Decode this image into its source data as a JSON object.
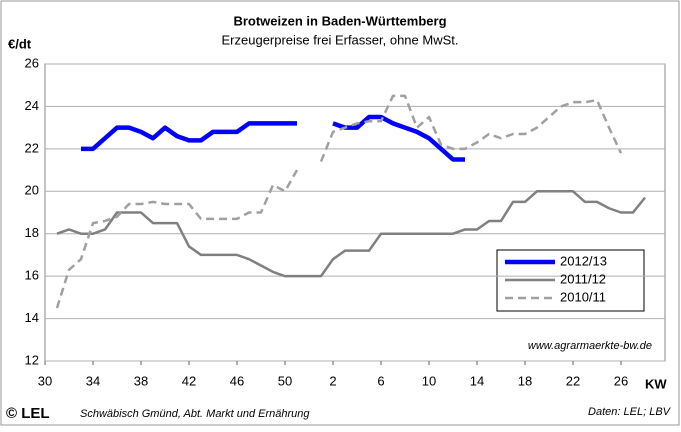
{
  "chart_data": {
    "type": "line",
    "title": "Brotweizen in Baden-Württemberg",
    "subtitle": "Erzeugerpreise frei Erfasser, ohne MwSt.",
    "y_label": "€/dt",
    "x_label": "KW",
    "annotation": "www.agrarmaerkte-bw.de",
    "logo": "© LEL",
    "footer_left": "Schwäbisch Gmünd, Abt. Markt und Ernährung",
    "footer_right": "Daten: LEL; LBV",
    "categories": [
      "30",
      null,
      null,
      null,
      "34",
      null,
      null,
      null,
      "38",
      null,
      null,
      null,
      "42",
      null,
      null,
      null,
      "46",
      null,
      null,
      null,
      "50",
      null,
      null,
      null,
      "2",
      null,
      null,
      null,
      "6",
      null,
      null,
      null,
      "10",
      null,
      null,
      null,
      "14",
      null,
      null,
      null,
      "18",
      null,
      null,
      null,
      "22",
      null,
      null,
      null,
      "26",
      null,
      null
    ],
    "ylim": [
      12,
      26
    ],
    "yticks": [
      12,
      14,
      16,
      18,
      20,
      22,
      24,
      26
    ],
    "grid": true,
    "legend": "lower right",
    "series": [
      {
        "name": "2012/13",
        "color": "#0000ff",
        "style": "solid",
        "values": [
          null,
          null,
          null,
          22.0,
          22.0,
          22.5,
          23.0,
          23.0,
          22.8,
          22.5,
          23.0,
          22.6,
          22.4,
          22.4,
          22.8,
          22.8,
          22.8,
          23.2,
          23.2,
          23.2,
          23.2,
          23.2,
          null,
          null,
          23.2,
          23.0,
          23.0,
          23.5,
          23.5,
          23.2,
          23.0,
          22.8,
          22.5,
          22.0,
          21.5,
          21.5,
          null,
          null,
          null,
          null,
          null,
          null,
          null,
          null,
          null,
          null,
          null,
          null,
          null,
          null,
          null
        ]
      },
      {
        "name": "2011/12",
        "color": "#808080",
        "style": "solid",
        "values": [
          null,
          18.0,
          18.2,
          18.0,
          18.0,
          18.2,
          19.0,
          19.0,
          19.0,
          18.5,
          18.5,
          18.5,
          17.4,
          17.0,
          17.0,
          17.0,
          17.0,
          16.8,
          16.5,
          16.2,
          16.0,
          16.0,
          16.0,
          16.0,
          16.8,
          17.2,
          17.2,
          17.2,
          18.0,
          18.0,
          18.0,
          18.0,
          18.0,
          18.0,
          18.0,
          18.2,
          18.2,
          18.6,
          18.6,
          19.5,
          19.5,
          20.0,
          20.0,
          20.0,
          20.0,
          19.5,
          19.5,
          19.2,
          19.0,
          19.0,
          19.7
        ]
      },
      {
        "name": "2010/11",
        "color": "#a0a0a0",
        "style": "dashed",
        "values": [
          null,
          14.5,
          16.3,
          16.8,
          18.5,
          18.6,
          18.8,
          19.4,
          19.4,
          19.5,
          19.4,
          19.4,
          19.4,
          18.7,
          18.7,
          18.7,
          18.7,
          19.0,
          19.0,
          20.3,
          20.0,
          21.0,
          null,
          21.4,
          22.8,
          23.0,
          23.2,
          23.3,
          23.3,
          24.5,
          24.5,
          23.0,
          23.5,
          22.2,
          22.0,
          22.0,
          22.3,
          22.7,
          22.5,
          22.7,
          22.7,
          23.0,
          23.5,
          24.0,
          24.2,
          24.2,
          24.3,
          23.0,
          21.8,
          null,
          null
        ]
      }
    ]
  }
}
